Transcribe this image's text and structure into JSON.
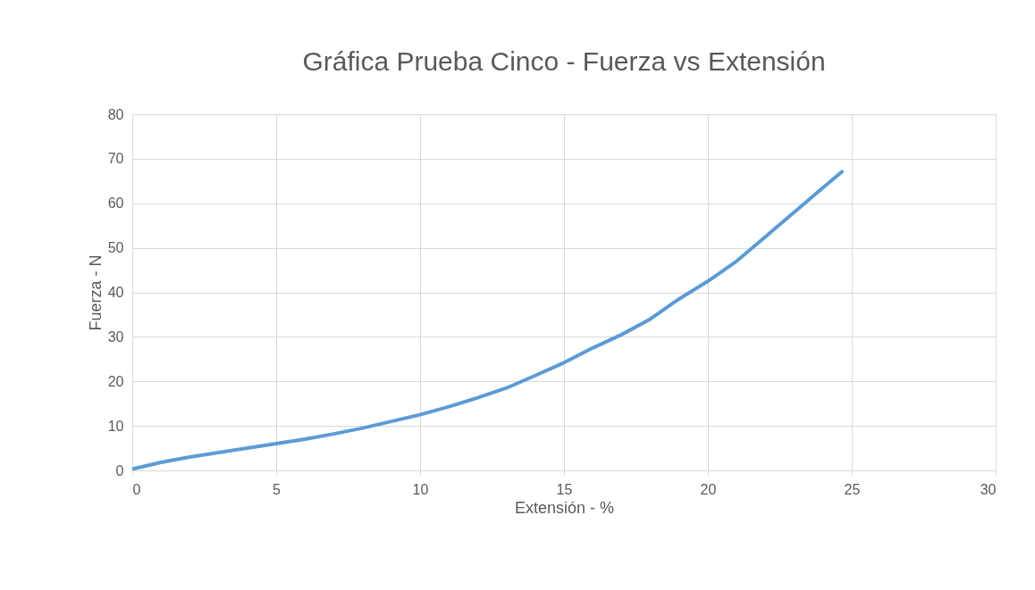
{
  "chart_data": {
    "type": "line",
    "title": "Gráfica Prueba Cinco - Fuerza vs Extensión",
    "xlabel": "Extensión - %",
    "ylabel": "Fuerza - N",
    "x": [
      0,
      1,
      2,
      3,
      4,
      5,
      6,
      7,
      8,
      9,
      10,
      11,
      12,
      13,
      14,
      15,
      16,
      17,
      18,
      19,
      20,
      21,
      22,
      23,
      24,
      24.7
    ],
    "series": [
      {
        "color": "#5b9bd5",
        "values": [
          0.3,
          1.8,
          3,
          4,
          5,
          6,
          7,
          8.2,
          9.5,
          11,
          12.5,
          14.3,
          16.3,
          18.5,
          21.3,
          24.2,
          27.5,
          30.5,
          34,
          38.5,
          42.5,
          47,
          52.5,
          58,
          63.5,
          67.3
        ]
      }
    ],
    "xlim": [
      0,
      30
    ],
    "xticks": [
      0,
      5,
      10,
      15,
      20,
      25,
      30
    ],
    "ylim": [
      0,
      80
    ],
    "yticks": [
      0,
      10,
      20,
      30,
      40,
      50,
      60,
      70,
      80
    ],
    "grid": true,
    "marker": "none",
    "line_style": "solid"
  }
}
